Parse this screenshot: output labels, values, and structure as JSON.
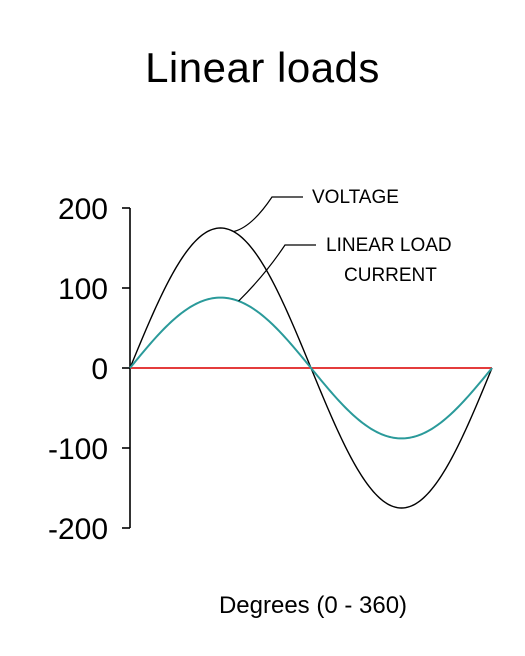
{
  "chart_data": {
    "type": "line",
    "title": "Linear loads",
    "xlabel": "Degrees (0 - 360)",
    "ylabel": "",
    "xlim": [
      0,
      360
    ],
    "ylim": [
      -200,
      200
    ],
    "yticks": [
      200,
      100,
      0,
      -100,
      -200
    ],
    "ytick_labels": [
      "200",
      "100",
      "0",
      "-100",
      "-200"
    ],
    "grid": false,
    "series": [
      {
        "name": "VOLTAGE",
        "amplitude": 175,
        "color": "#000000",
        "x": [
          0,
          30,
          60,
          90,
          120,
          150,
          180,
          210,
          240,
          270,
          300,
          330,
          360
        ],
        "values": [
          0,
          87.5,
          151.6,
          175,
          151.6,
          87.5,
          0,
          -87.5,
          -151.6,
          -175,
          -151.6,
          -87.5,
          0
        ]
      },
      {
        "name": "LINEAR LOAD CURRENT",
        "amplitude": 88,
        "color": "#2a9a9a",
        "x": [
          0,
          30,
          60,
          90,
          120,
          150,
          180,
          210,
          240,
          270,
          300,
          330,
          360
        ],
        "values": [
          0,
          44,
          76.2,
          88,
          76.2,
          44,
          0,
          -44,
          -76.2,
          -88,
          -76.2,
          -44,
          0
        ]
      }
    ],
    "zero_line_color": "#e02020",
    "annotations": [
      {
        "series": "VOLTAGE",
        "lines": [
          "VOLTAGE"
        ]
      },
      {
        "series": "LINEAR LOAD CURRENT",
        "lines": [
          "LINEAR LOAD",
          "CURRENT"
        ]
      }
    ]
  }
}
